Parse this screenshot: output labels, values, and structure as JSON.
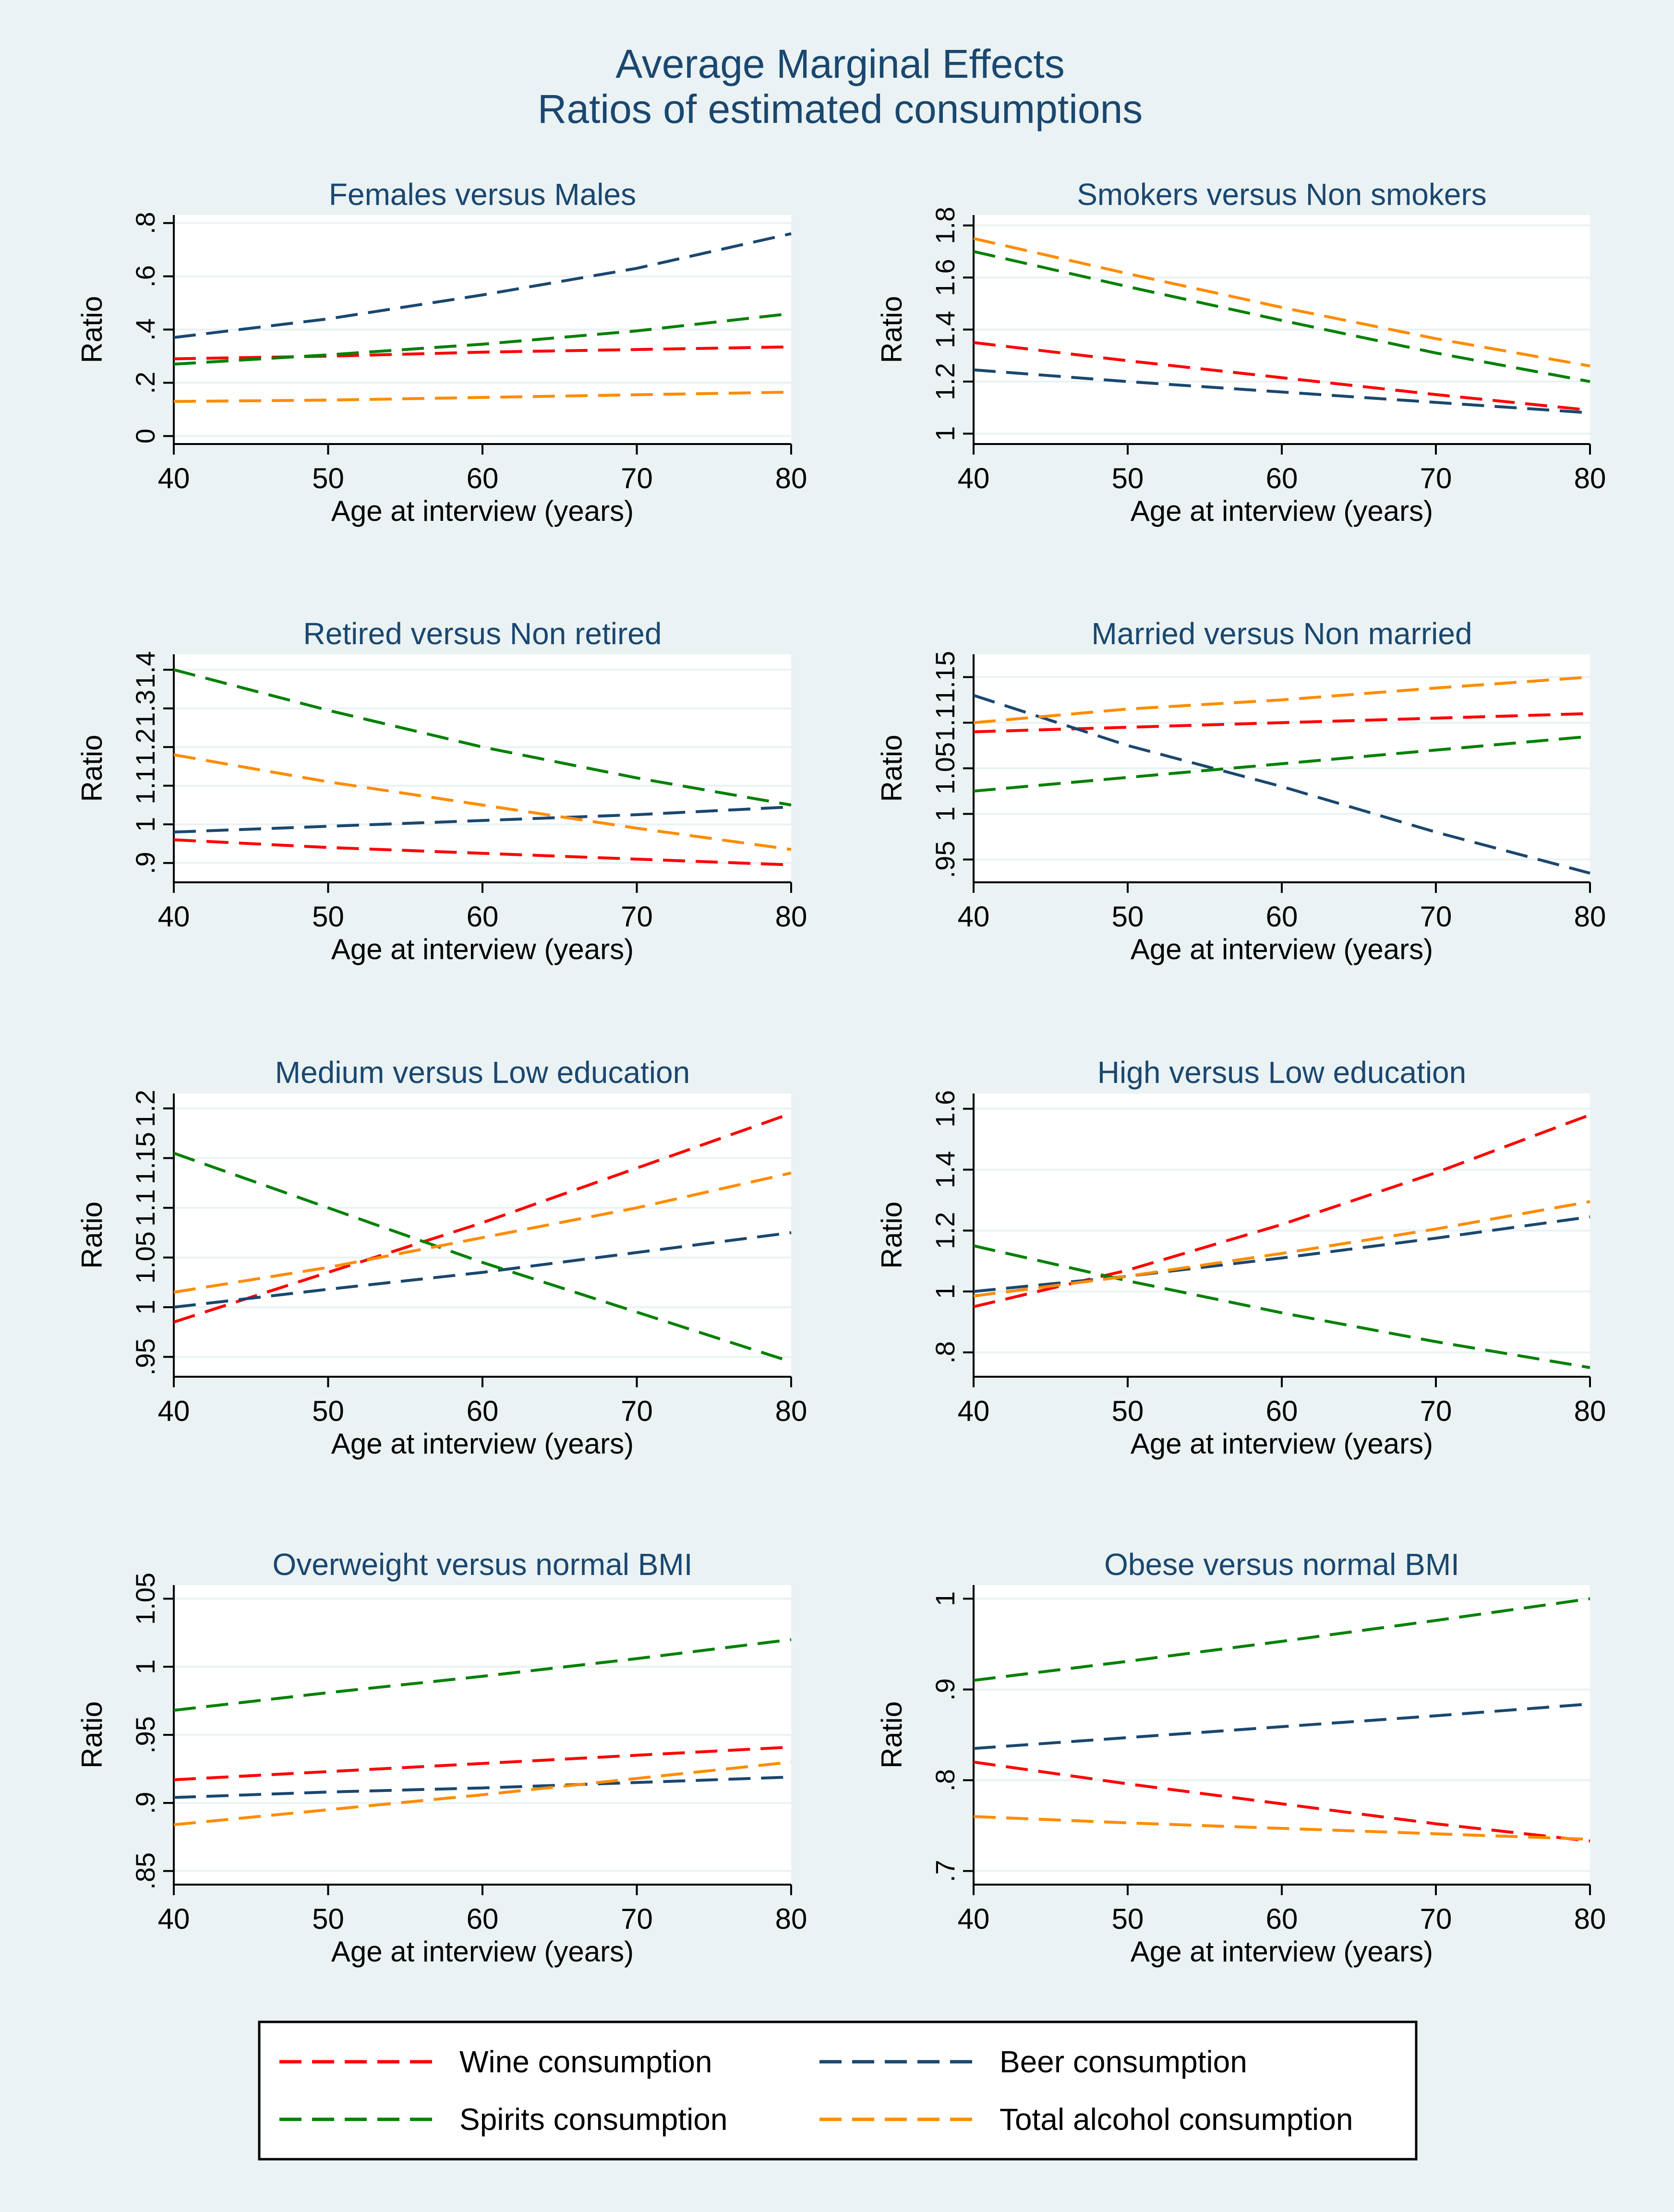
{
  "figure": {
    "title_line1": "Average Marginal  Effects",
    "title_line2": "Ratios of estimated consumptions"
  },
  "colors": {
    "outer_background": "#eaf2f3",
    "plot_background": "#ffffff",
    "title": "#1a476f",
    "grid": "#eaf2f3",
    "axis": "#000000",
    "wine": "#ff0000",
    "beer": "#1a476f",
    "spirits": "#008000",
    "total": "#ff8c00"
  },
  "legend": {
    "items": [
      {
        "key": "wine",
        "label": "Wine consumption"
      },
      {
        "key": "beer",
        "label": "Beer consumption"
      },
      {
        "key": "spirits",
        "label": "Spirits consumption"
      },
      {
        "key": "total",
        "label": "Total alcohol consumption"
      }
    ]
  },
  "chart_data": [
    {
      "type": "line",
      "title": "Females versus Males",
      "xlabel": "Age at interview (years)",
      "ylabel": "Ratio",
      "x": [
        40,
        50,
        60,
        70,
        80
      ],
      "xticks": [
        "40",
        "50",
        "60",
        "70",
        "80"
      ],
      "yticks": [
        0,
        0.2,
        0.4,
        0.6,
        0.8
      ],
      "ytick_labels": [
        "0",
        ".2",
        ".4",
        ".6",
        ".8"
      ],
      "xlim": [
        40,
        80
      ],
      "ylim": [
        -0.03,
        0.83
      ],
      "series": [
        {
          "key": "wine",
          "name": "Wine consumption",
          "values": [
            0.29,
            0.3,
            0.315,
            0.325,
            0.335
          ]
        },
        {
          "key": "beer",
          "name": "Beer consumption",
          "values": [
            0.37,
            0.44,
            0.53,
            0.63,
            0.76
          ]
        },
        {
          "key": "spirits",
          "name": "Spirits consumption",
          "values": [
            0.27,
            0.305,
            0.345,
            0.395,
            0.46
          ]
        },
        {
          "key": "total",
          "name": "Total alcohol consumption",
          "values": [
            0.13,
            0.135,
            0.145,
            0.155,
            0.165
          ]
        }
      ]
    },
    {
      "type": "line",
      "title": "Smokers versus Non smokers",
      "xlabel": "Age at interview (years)",
      "ylabel": "Ratio",
      "x": [
        40,
        50,
        60,
        70,
        80
      ],
      "xticks": [
        "40",
        "50",
        "60",
        "70",
        "80"
      ],
      "yticks": [
        1,
        1.2,
        1.4,
        1.6,
        1.8
      ],
      "ytick_labels": [
        "1",
        "1.2",
        "1.4",
        "1.6",
        "1.8"
      ],
      "xlim": [
        40,
        80
      ],
      "ylim": [
        0.96,
        1.84
      ],
      "series": [
        {
          "key": "wine",
          "name": "Wine consumption",
          "values": [
            1.35,
            1.28,
            1.215,
            1.15,
            1.09
          ]
        },
        {
          "key": "beer",
          "name": "Beer consumption",
          "values": [
            1.245,
            1.2,
            1.16,
            1.12,
            1.08
          ]
        },
        {
          "key": "spirits",
          "name": "Spirits consumption",
          "values": [
            1.7,
            1.565,
            1.435,
            1.31,
            1.2
          ]
        },
        {
          "key": "total",
          "name": "Total alcohol consumption",
          "values": [
            1.75,
            1.615,
            1.485,
            1.365,
            1.26
          ]
        }
      ]
    },
    {
      "type": "line",
      "title": "Retired versus Non retired",
      "xlabel": "Age at interview (years)",
      "ylabel": "Ratio",
      "x": [
        40,
        50,
        60,
        70,
        80
      ],
      "xticks": [
        "40",
        "50",
        "60",
        "70",
        "80"
      ],
      "yticks": [
        0.9,
        1,
        1.1,
        1.2,
        1.3,
        1.4
      ],
      "ytick_labels": [
        ".9",
        "1",
        "1.1",
        "1.2",
        "1.3",
        "1.4"
      ],
      "xlim": [
        40,
        80
      ],
      "ylim": [
        0.85,
        1.44
      ],
      "series": [
        {
          "key": "wine",
          "name": "Wine consumption",
          "values": [
            0.96,
            0.94,
            0.925,
            0.91,
            0.895
          ]
        },
        {
          "key": "beer",
          "name": "Beer consumption",
          "values": [
            0.98,
            0.995,
            1.01,
            1.025,
            1.045
          ]
        },
        {
          "key": "spirits",
          "name": "Spirits consumption",
          "values": [
            1.4,
            1.295,
            1.2,
            1.12,
            1.05
          ]
        },
        {
          "key": "total",
          "name": "Total alcohol consumption",
          "values": [
            1.18,
            1.11,
            1.05,
            0.99,
            0.935
          ]
        }
      ]
    },
    {
      "type": "line",
      "title": "Married versus Non married",
      "xlabel": "Age at interview (years)",
      "ylabel": "Ratio",
      "x": [
        40,
        50,
        60,
        70,
        80
      ],
      "xticks": [
        "40",
        "50",
        "60",
        "70",
        "80"
      ],
      "yticks": [
        0.95,
        1,
        1.05,
        1.1,
        1.15
      ],
      "ytick_labels": [
        ".95",
        "1",
        "1.05",
        "1.1",
        "1.15"
      ],
      "xlim": [
        40,
        80
      ],
      "ylim": [
        0.925,
        1.175
      ],
      "series": [
        {
          "key": "wine",
          "name": "Wine consumption",
          "values": [
            1.09,
            1.095,
            1.1,
            1.105,
            1.11
          ]
        },
        {
          "key": "beer",
          "name": "Beer consumption",
          "values": [
            1.13,
            1.075,
            1.03,
            0.98,
            0.935
          ]
        },
        {
          "key": "spirits",
          "name": "Spirits consumption",
          "values": [
            1.025,
            1.04,
            1.055,
            1.07,
            1.085
          ]
        },
        {
          "key": "total",
          "name": "Total alcohol consumption",
          "values": [
            1.1,
            1.115,
            1.125,
            1.138,
            1.15
          ]
        }
      ]
    },
    {
      "type": "line",
      "title": "Medium versus Low education",
      "xlabel": "Age at interview (years)",
      "ylabel": "Ratio",
      "x": [
        40,
        50,
        60,
        70,
        80
      ],
      "xticks": [
        "40",
        "50",
        "60",
        "70",
        "80"
      ],
      "yticks": [
        0.95,
        1,
        1.05,
        1.1,
        1.15,
        1.2
      ],
      "ytick_labels": [
        ".95",
        "1",
        "1.05",
        "1.1",
        "1.15",
        "1.2"
      ],
      "xlim": [
        40,
        80
      ],
      "ylim": [
        0.93,
        1.215
      ],
      "series": [
        {
          "key": "wine",
          "name": "Wine consumption",
          "values": [
            0.985,
            1.035,
            1.085,
            1.14,
            1.195
          ]
        },
        {
          "key": "beer",
          "name": "Beer consumption",
          "values": [
            1.0,
            1.018,
            1.035,
            1.055,
            1.075
          ]
        },
        {
          "key": "spirits",
          "name": "Spirits consumption",
          "values": [
            1.155,
            1.1,
            1.045,
            0.995,
            0.945
          ]
        },
        {
          "key": "total",
          "name": "Total alcohol consumption",
          "values": [
            1.015,
            1.04,
            1.07,
            1.1,
            1.135
          ]
        }
      ]
    },
    {
      "type": "line",
      "title": "High versus Low education",
      "xlabel": "Age at interview (years)",
      "ylabel": "Ratio",
      "x": [
        40,
        50,
        60,
        70,
        80
      ],
      "xticks": [
        "40",
        "50",
        "60",
        "70",
        "80"
      ],
      "yticks": [
        0.8,
        1,
        1.2,
        1.4,
        1.6
      ],
      "ytick_labels": [
        ".8",
        "1",
        "1.2",
        "1.4",
        "1.6"
      ],
      "xlim": [
        40,
        80
      ],
      "ylim": [
        0.72,
        1.65
      ],
      "series": [
        {
          "key": "wine",
          "name": "Wine consumption",
          "values": [
            0.95,
            1.07,
            1.22,
            1.39,
            1.58
          ]
        },
        {
          "key": "beer",
          "name": "Beer consumption",
          "values": [
            1.0,
            1.05,
            1.11,
            1.175,
            1.245
          ]
        },
        {
          "key": "spirits",
          "name": "Spirits consumption",
          "values": [
            1.15,
            1.035,
            0.93,
            0.835,
            0.75
          ]
        },
        {
          "key": "total",
          "name": "Total alcohol consumption",
          "values": [
            0.985,
            1.05,
            1.125,
            1.205,
            1.295
          ]
        }
      ]
    },
    {
      "type": "line",
      "title": "Overweight versus normal BMI",
      "xlabel": "Age at interview (years)",
      "ylabel": "Ratio",
      "x": [
        40,
        50,
        60,
        70,
        80
      ],
      "xticks": [
        "40",
        "50",
        "60",
        "70",
        "80"
      ],
      "yticks": [
        0.85,
        0.9,
        0.95,
        1,
        1.05
      ],
      "ytick_labels": [
        ".85",
        ".9",
        ".95",
        "1",
        "1.05"
      ],
      "xlim": [
        40,
        80
      ],
      "ylim": [
        0.84,
        1.06
      ],
      "series": [
        {
          "key": "wine",
          "name": "Wine consumption",
          "values": [
            0.917,
            0.923,
            0.929,
            0.935,
            0.941
          ]
        },
        {
          "key": "beer",
          "name": "Beer consumption",
          "values": [
            0.904,
            0.908,
            0.911,
            0.915,
            0.919
          ]
        },
        {
          "key": "spirits",
          "name": "Spirits consumption",
          "values": [
            0.968,
            0.981,
            0.993,
            1.006,
            1.02
          ]
        },
        {
          "key": "total",
          "name": "Total alcohol consumption",
          "values": [
            0.884,
            0.895,
            0.906,
            0.918,
            0.93
          ]
        }
      ]
    },
    {
      "type": "line",
      "title": "Obese versus normal BMI",
      "xlabel": "Age at interview (years)",
      "ylabel": "Ratio",
      "x": [
        40,
        50,
        60,
        70,
        80
      ],
      "xticks": [
        "40",
        "50",
        "60",
        "70",
        "80"
      ],
      "yticks": [
        0.7,
        0.8,
        0.9,
        1
      ],
      "ytick_labels": [
        ".7",
        ".8",
        ".9",
        "1"
      ],
      "xlim": [
        40,
        80
      ],
      "ylim": [
        0.685,
        1.015
      ],
      "series": [
        {
          "key": "wine",
          "name": "Wine consumption",
          "values": [
            0.82,
            0.796,
            0.774,
            0.752,
            0.733
          ]
        },
        {
          "key": "beer",
          "name": "Beer consumption",
          "values": [
            0.835,
            0.847,
            0.859,
            0.871,
            0.884
          ]
        },
        {
          "key": "spirits",
          "name": "Spirits consumption",
          "values": [
            0.91,
            0.931,
            0.953,
            0.976,
            1.0
          ]
        },
        {
          "key": "total",
          "name": "Total alcohol consumption",
          "values": [
            0.76,
            0.753,
            0.747,
            0.741,
            0.735
          ]
        }
      ]
    }
  ]
}
